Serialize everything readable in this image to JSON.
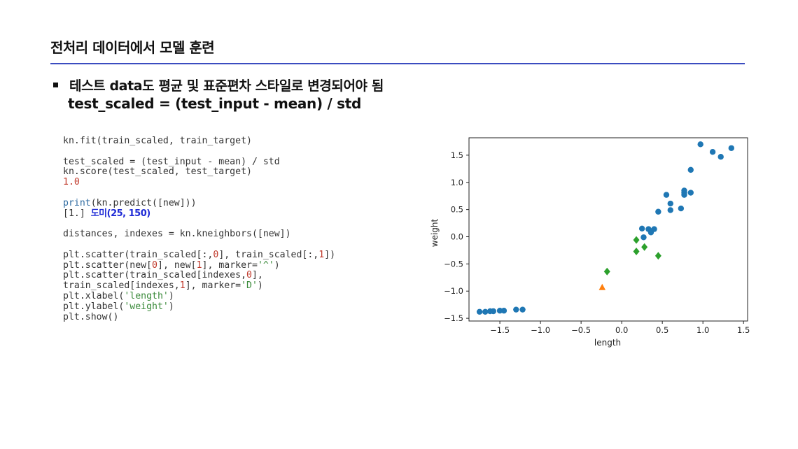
{
  "slide": {
    "title": "전처리 데이터에서 모델 훈련",
    "bullet": "테스트 data도 평균 및 표준편차 스타일로 변경되어야 됨",
    "formula": "test_scaled = (test_input - mean) / std"
  },
  "code": {
    "l1": "kn.fit(train_scaled, train_target)",
    "l2": "test_scaled = (test_input - mean) / std",
    "l3": "kn.score(test_scaled, test_target)",
    "l4": "1.0",
    "l5_fn": "print",
    "l5_rest": "(kn.predict([new]))",
    "l6_out": "[1.]",
    "l6_note": "도미(25, 150)",
    "l7": "distances, indexes = kn.kneighbors([new])",
    "l8a": "plt.scatter(train_scaled[:,",
    "l8b": "0",
    "l8c": "], train_scaled[:,",
    "l8d": "1",
    "l8e": "])",
    "l9a": "plt.scatter(new[",
    "l9b": "0",
    "l9c": "], new[",
    "l9d": "1",
    "l9e": "], marker=",
    "l9f": "'^'",
    "l9g": ")",
    "l10a": "plt.scatter(train_scaled[indexes,",
    "l10b": "0",
    "l10c": "],",
    "l11a": "train_scaled[indexes,",
    "l11b": "1",
    "l11c": "], marker=",
    "l11d": "'D'",
    "l11e": ")",
    "l12a": "plt.xlabel(",
    "l12b": "'length'",
    "l12c": ")",
    "l13a": "plt.ylabel(",
    "l13b": "'weight'",
    "l13c": ")",
    "l14": "plt.show()"
  },
  "chart_data": {
    "type": "scatter",
    "xlabel": "length",
    "ylabel": "weight",
    "xlim": [
      -1.88,
      1.55
    ],
    "ylim": [
      -1.55,
      1.82
    ],
    "xticks": [
      -1.5,
      -1.0,
      -0.5,
      0.0,
      0.5,
      1.0,
      1.5
    ],
    "xtick_labels": [
      "−1.5",
      "−1.0",
      "−0.5",
      "0.0",
      "0.5",
      "1.0",
      "1.5"
    ],
    "yticks": [
      1.5,
      1.0,
      0.5,
      0.0,
      -0.5,
      -1.0,
      -1.5
    ],
    "ytick_labels": [
      "1.5",
      "1.0",
      "0.5",
      "0.0",
      "−0.5",
      "−1.0",
      "−1.5"
    ],
    "colors": {
      "train": "#1f77b4",
      "new": "#ff7f0e",
      "neighbors": "#2ca02c"
    },
    "series": [
      {
        "marker": "circle",
        "x": [
          -1.75,
          -1.68,
          -1.62,
          -1.58,
          -1.5,
          -1.45,
          -1.3,
          -1.22,
          0.25,
          0.27,
          0.33,
          0.36,
          0.4,
          0.45,
          0.55,
          0.6,
          0.6,
          0.73,
          0.77,
          0.77,
          0.77,
          0.85,
          0.85,
          0.97,
          1.12,
          1.22,
          1.35
        ],
        "y": [
          -1.38,
          -1.38,
          -1.37,
          -1.37,
          -1.36,
          -1.36,
          -1.34,
          -1.34,
          0.15,
          -0.01,
          0.14,
          0.08,
          0.14,
          0.46,
          0.77,
          0.61,
          0.49,
          0.52,
          0.85,
          0.77,
          0.81,
          0.81,
          1.23,
          1.7,
          1.56,
          1.47,
          1.63
        ]
      },
      {
        "marker": "triangle",
        "x": [
          -0.24
        ],
        "y": [
          -0.93
        ]
      },
      {
        "marker": "diamond",
        "x": [
          -0.18,
          0.18,
          0.18,
          0.28,
          0.45
        ],
        "y": [
          -0.64,
          -0.06,
          -0.27,
          -0.19,
          -0.35
        ]
      }
    ]
  }
}
